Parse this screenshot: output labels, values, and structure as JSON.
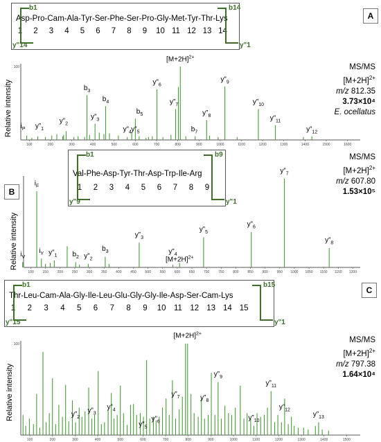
{
  "chart_data": [
    {
      "panel": "A",
      "type": "bar",
      "sequence": "Asp-Pro-Cam-Ala-Tyr-Ser-Phe-Ser-Pro-Gly-Met-Tyr-Thr-Lys",
      "residue_numbers": [
        "1",
        "2",
        "3",
        "4",
        "5",
        "6",
        "7",
        "8",
        "9",
        "10",
        "11",
        "12",
        "13",
        "14"
      ],
      "b_ion_label": "b1",
      "b_last_label": "b14",
      "y_first_label": "y\"14",
      "y_last_label": "y\"1",
      "ylabel": "Relative intensity",
      "x_ticks": [
        "100",
        "200",
        "300",
        "400",
        "500",
        "600",
        "700",
        "800",
        "900",
        "1000",
        "1100",
        "1200",
        "1300",
        "1400",
        "1500",
        "1600"
      ],
      "y_tick_top": "100",
      "xlim": [
        60,
        1660
      ],
      "ylim": [
        0,
        100
      ],
      "info": {
        "line1": "MS/MS",
        "line2": "[M+2H]2+",
        "line3_prefix": "m/z",
        "line3_value": "812.35",
        "line4": "3.73×10⁴",
        "line5": "E. ocellatus"
      },
      "peaks": [
        {
          "x": 88,
          "y": 6
        },
        {
          "x": 112,
          "y": 3
        },
        {
          "x": 140,
          "y": 5
        },
        {
          "x": 176,
          "y": 4
        },
        {
          "x": 206,
          "y": 6
        },
        {
          "x": 230,
          "y": 8
        },
        {
          "x": 258,
          "y": 5
        },
        {
          "x": 262,
          "y": 7
        },
        {
          "x": 274,
          "y": 12
        },
        {
          "x": 310,
          "y": 4
        },
        {
          "x": 330,
          "y": 5
        },
        {
          "x": 361,
          "y": 4
        },
        {
          "x": 372,
          "y": 61
        },
        {
          "x": 384,
          "y": 7
        },
        {
          "x": 410,
          "y": 22
        },
        {
          "x": 430,
          "y": 10
        },
        {
          "x": 452,
          "y": 8
        },
        {
          "x": 460,
          "y": 46
        },
        {
          "x": 478,
          "y": 9
        },
        {
          "x": 520,
          "y": 6
        },
        {
          "x": 562,
          "y": 4
        },
        {
          "x": 583,
          "y": 10
        },
        {
          "x": 600,
          "y": 29
        },
        {
          "x": 618,
          "y": 5
        },
        {
          "x": 650,
          "y": 3
        },
        {
          "x": 662,
          "y": 4
        },
        {
          "x": 680,
          "y": 5
        },
        {
          "x": 702,
          "y": 69
        },
        {
          "x": 730,
          "y": 4
        },
        {
          "x": 768,
          "y": 7
        },
        {
          "x": 790,
          "y": 42
        },
        {
          "x": 803,
          "y": 72
        },
        {
          "x": 812,
          "y": 100
        },
        {
          "x": 838,
          "y": 5
        },
        {
          "x": 882,
          "y": 5
        },
        {
          "x": 936,
          "y": 27
        },
        {
          "x": 950,
          "y": 6
        },
        {
          "x": 990,
          "y": 4
        },
        {
          "x": 1022,
          "y": 73
        },
        {
          "x": 1080,
          "y": 4
        },
        {
          "x": 1180,
          "y": 42
        },
        {
          "x": 1260,
          "y": 20
        },
        {
          "x": 1392,
          "y": 4
        },
        {
          "x": 1432,
          "y": 5
        }
      ],
      "annotations": [
        {
          "label": "i",
          "sub": "P",
          "x": 70,
          "y": 14
        },
        {
          "label": "y\"",
          "sub": "1",
          "x": 148,
          "y": 14
        },
        {
          "label": "y\"",
          "sub": "2",
          "x": 262,
          "y": 21
        },
        {
          "label": "b",
          "sub": "3",
          "x": 372,
          "y": 66
        },
        {
          "label": "b",
          "sub": "4",
          "x": 460,
          "y": 51
        },
        {
          "label": "y\"",
          "sub": "3",
          "x": 410,
          "y": 27
        },
        {
          "label": "y\"",
          "sub": "4",
          "x": 562,
          "y": 10
        },
        {
          "label": "y\"",
          "sub": "5",
          "x": 600,
          "y": 10
        },
        {
          "label": "b",
          "sub": "5",
          "x": 620,
          "y": 34
        },
        {
          "label": "y\"",
          "sub": "6",
          "x": 702,
          "y": 74
        },
        {
          "label": "y\"",
          "sub": "7",
          "x": 782,
          "y": 47
        },
        {
          "label": "[M+2H]",
          "sup": "2+",
          "x": 812,
          "y": 105
        },
        {
          "label": "b",
          "sub": "7",
          "x": 878,
          "y": 10
        },
        {
          "label": "y\"",
          "sub": "8",
          "x": 936,
          "y": 32
        },
        {
          "label": "y\"",
          "sub": "9",
          "x": 1022,
          "y": 78
        },
        {
          "label": "y\"",
          "sub": "10",
          "x": 1180,
          "y": 47
        },
        {
          "label": "y\"",
          "sub": "11",
          "x": 1260,
          "y": 25
        },
        {
          "label": "y\"",
          "sub": "12",
          "x": 1432,
          "y": 10
        }
      ]
    },
    {
      "panel": "B",
      "type": "bar",
      "sequence": "Val-Phe-Asp-Tyr-Thr-Asp-Trp-Ile-Arg",
      "residue_numbers": [
        "1",
        "2",
        "3",
        "4",
        "5",
        "6",
        "7",
        "8",
        "9"
      ],
      "b_ion_label": "b1",
      "b_last_label": "b9",
      "y_first_label": "y\"9",
      "y_last_label": "y\"1",
      "ylabel": "Relative intensity",
      "x_ticks": [
        "100",
        "150",
        "200",
        "250",
        "300",
        "350",
        "400",
        "450",
        "500",
        "550",
        "600",
        "650",
        "700",
        "750",
        "800",
        "850",
        "900",
        "950",
        "1000",
        "1050",
        "1100",
        "1150",
        "1200"
      ],
      "xlim": [
        75,
        1225
      ],
      "ylim": [
        0,
        100
      ],
      "info": {
        "line1": "MS/MS",
        "line2": "[M+2H]2+",
        "line3_prefix": "m/z",
        "line3_value": "607.80",
        "line4": "1.53×10⁵"
      },
      "peaks": [
        {
          "x": 72,
          "y": 6
        },
        {
          "x": 120,
          "y": 86
        },
        {
          "x": 136,
          "y": 10
        },
        {
          "x": 150,
          "y": 4
        },
        {
          "x": 166,
          "y": 5
        },
        {
          "x": 180,
          "y": 8
        },
        {
          "x": 224,
          "y": 24
        },
        {
          "x": 253,
          "y": 6
        },
        {
          "x": 266,
          "y": 3
        },
        {
          "x": 296,
          "y": 4
        },
        {
          "x": 354,
          "y": 12
        },
        {
          "x": 367,
          "y": 4
        },
        {
          "x": 470,
          "y": 28
        },
        {
          "x": 585,
          "y": 3
        },
        {
          "x": 608,
          "y": 5
        },
        {
          "x": 690,
          "y": 34
        },
        {
          "x": 853,
          "y": 40
        },
        {
          "x": 966,
          "y": 100
        },
        {
          "x": 1119,
          "y": 22
        }
      ],
      "annotations": [
        {
          "label": "i",
          "sub": "V",
          "x": 72,
          "y": 11
        },
        {
          "label": "i",
          "sub": "F",
          "x": 120,
          "y": 91
        },
        {
          "label": "i",
          "sub": "Y",
          "x": 136,
          "y": 15
        },
        {
          "label": "y\"",
          "sub": "1",
          "x": 175,
          "y": 13
        },
        {
          "label": "b",
          "sub": "2",
          "x": 253,
          "y": 11
        },
        {
          "label": "y\"",
          "sub": "2",
          "x": 296,
          "y": 9
        },
        {
          "label": "b",
          "sub": "3",
          "x": 354,
          "y": 17
        },
        {
          "label": "y\"",
          "sub": "3",
          "x": 470,
          "y": 33
        },
        {
          "label": "y\"",
          "sub": "4",
          "x": 585,
          "y": 14
        },
        {
          "label": "[M+2H]",
          "sup": "2+",
          "x": 608,
          "y": 5
        },
        {
          "label": "y\"",
          "sub": "5",
          "x": 690,
          "y": 39
        },
        {
          "label": "y\"",
          "sub": "6",
          "x": 853,
          "y": 45
        },
        {
          "label": "y\"",
          "sub": "7",
          "x": 966,
          "y": 105
        },
        {
          "label": "y\"",
          "sub": "8",
          "x": 1119,
          "y": 27
        }
      ]
    },
    {
      "panel": "C",
      "type": "bar",
      "sequence": "Thr-Leu-Cam-Ala-Gly-Ile-Leu-Glu-Gly-Gly-Ile-Asp-Ser-Cam-Lys",
      "residue_numbers": [
        "1",
        "2",
        "3",
        "4",
        "5",
        "6",
        "7",
        "8",
        "9",
        "10",
        "11",
        "12",
        "13",
        "14",
        "15"
      ],
      "b_ion_label": "b1",
      "b_last_label": "b15",
      "y_first_label": "y\"15",
      "y_last_label": "y\"1",
      "ylabel": "Relative intensity",
      "x_ticks": [
        "100",
        "200",
        "300",
        "400",
        "500",
        "600",
        "700",
        "800",
        "900",
        "1000",
        "1100",
        "1200",
        "1300",
        "1400",
        "1500"
      ],
      "y_tick_top": "100",
      "xlim": [
        60,
        1560
      ],
      "ylim": [
        0,
        100
      ],
      "info": {
        "line1": "MS/MS",
        "line2": "[M+2H]2+",
        "line3_prefix": "m/z",
        "line3_value": "797.38",
        "line4": "1.64×10⁴"
      },
      "peaks": [
        {
          "x": 70,
          "y": 22
        },
        {
          "x": 82,
          "y": 10
        },
        {
          "x": 98,
          "y": 18
        },
        {
          "x": 116,
          "y": 12
        },
        {
          "x": 130,
          "y": 45
        },
        {
          "x": 144,
          "y": 8
        },
        {
          "x": 158,
          "y": 91
        },
        {
          "x": 172,
          "y": 14
        },
        {
          "x": 186,
          "y": 24
        },
        {
          "x": 200,
          "y": 62
        },
        {
          "x": 214,
          "y": 12
        },
        {
          "x": 228,
          "y": 33
        },
        {
          "x": 244,
          "y": 20
        },
        {
          "x": 258,
          "y": 55
        },
        {
          "x": 272,
          "y": 15
        },
        {
          "x": 288,
          "y": 38
        },
        {
          "x": 302,
          "y": 14
        },
        {
          "x": 318,
          "y": 30
        },
        {
          "x": 330,
          "y": 20
        },
        {
          "x": 344,
          "y": 26
        },
        {
          "x": 360,
          "y": 52
        },
        {
          "x": 374,
          "y": 18
        },
        {
          "x": 386,
          "y": 22
        },
        {
          "x": 402,
          "y": 70
        },
        {
          "x": 416,
          "y": 12
        },
        {
          "x": 430,
          "y": 14
        },
        {
          "x": 446,
          "y": 28
        },
        {
          "x": 460,
          "y": 46
        },
        {
          "x": 472,
          "y": 18
        },
        {
          "x": 486,
          "y": 22
        },
        {
          "x": 500,
          "y": 54
        },
        {
          "x": 514,
          "y": 24
        },
        {
          "x": 530,
          "y": 11
        },
        {
          "x": 545,
          "y": 33
        },
        {
          "x": 558,
          "y": 34
        },
        {
          "x": 572,
          "y": 22
        },
        {
          "x": 588,
          "y": 24
        },
        {
          "x": 602,
          "y": 20
        },
        {
          "x": 616,
          "y": 82
        },
        {
          "x": 630,
          "y": 18
        },
        {
          "x": 646,
          "y": 20
        },
        {
          "x": 658,
          "y": 16
        },
        {
          "x": 672,
          "y": 20
        },
        {
          "x": 686,
          "y": 30
        },
        {
          "x": 702,
          "y": 40
        },
        {
          "x": 716,
          "y": 22
        },
        {
          "x": 730,
          "y": 60
        },
        {
          "x": 744,
          "y": 18
        },
        {
          "x": 760,
          "y": 28
        },
        {
          "x": 774,
          "y": 42
        },
        {
          "x": 788,
          "y": 100
        },
        {
          "x": 797,
          "y": 100
        },
        {
          "x": 812,
          "y": 45
        },
        {
          "x": 826,
          "y": 24
        },
        {
          "x": 844,
          "y": 20
        },
        {
          "x": 858,
          "y": 40
        },
        {
          "x": 872,
          "y": 18
        },
        {
          "x": 888,
          "y": 22
        },
        {
          "x": 902,
          "y": 68
        },
        {
          "x": 918,
          "y": 22
        },
        {
          "x": 932,
          "y": 58
        },
        {
          "x": 946,
          "y": 18
        },
        {
          "x": 962,
          "y": 32
        },
        {
          "x": 978,
          "y": 24
        },
        {
          "x": 992,
          "y": 22
        },
        {
          "x": 1008,
          "y": 30
        },
        {
          "x": 1030,
          "y": 54
        },
        {
          "x": 1046,
          "y": 18
        },
        {
          "x": 1060,
          "y": 24
        },
        {
          "x": 1076,
          "y": 18
        },
        {
          "x": 1090,
          "y": 10
        },
        {
          "x": 1104,
          "y": 24
        },
        {
          "x": 1120,
          "y": 20
        },
        {
          "x": 1136,
          "y": 22
        },
        {
          "x": 1150,
          "y": 30
        },
        {
          "x": 1166,
          "y": 48
        },
        {
          "x": 1182,
          "y": 14
        },
        {
          "x": 1196,
          "y": 22
        },
        {
          "x": 1212,
          "y": 14
        },
        {
          "x": 1226,
          "y": 40
        },
        {
          "x": 1242,
          "y": 12
        },
        {
          "x": 1256,
          "y": 20
        },
        {
          "x": 1268,
          "y": 10
        },
        {
          "x": 1286,
          "y": 8
        },
        {
          "x": 1310,
          "y": 8
        },
        {
          "x": 1330,
          "y": 6
        },
        {
          "x": 1362,
          "y": 10
        },
        {
          "x": 1376,
          "y": 14
        },
        {
          "x": 1392,
          "y": 6
        },
        {
          "x": 1420,
          "y": 5
        }
      ],
      "annotations": [
        {
          "label": "y\"",
          "sub": "2",
          "x": 302,
          "y": 19
        },
        {
          "label": "y\"",
          "sub": "3",
          "x": 374,
          "y": 23
        },
        {
          "label": "y\"",
          "sub": "4",
          "x": 460,
          "y": 27
        },
        {
          "label": "y\"",
          "sub": "5",
          "x": 600,
          "y": 8
        },
        {
          "label": "y\"",
          "sub": "6",
          "x": 656,
          "y": 14
        },
        {
          "label": "y\"",
          "sub": "7",
          "x": 744,
          "y": 41
        },
        {
          "label": "[M+2H]",
          "sup": "2+",
          "x": 797,
          "y": 105
        },
        {
          "label": "y\"",
          "sub": "8",
          "x": 872,
          "y": 37
        },
        {
          "label": "y\"",
          "sub": "9",
          "x": 932,
          "y": 63
        },
        {
          "label": "y\"",
          "sub": "10",
          "x": 1090,
          "y": 15
        },
        {
          "label": "y\"",
          "sub": "11",
          "x": 1166,
          "y": 53
        },
        {
          "label": "y\"",
          "sub": "12",
          "x": 1226,
          "y": 27
        },
        {
          "label": "y\"",
          "sub": "13",
          "x": 1376,
          "y": 19
        }
      ]
    }
  ],
  "colors": {
    "peak": "#4a9a3a",
    "arrow": "#3c6e26",
    "axis": "#555555"
  }
}
